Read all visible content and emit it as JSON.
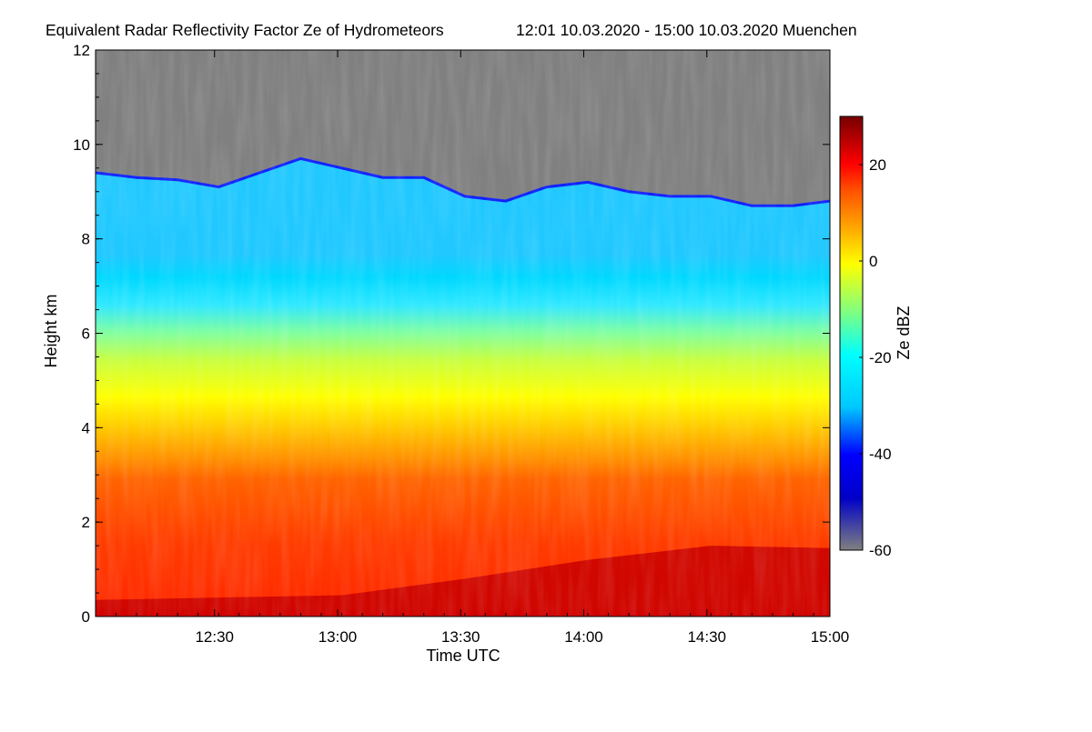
{
  "chart_data": {
    "type": "heatmap",
    "title": "Equivalent Radar Reflectivity Factor Ze of Hydrometeors",
    "subtitle": "12:01 10.03.2020 - 15:00 10.03.2020 Muenchen",
    "xlabel": "Time UTC",
    "ylabel": "Height km",
    "xlim": [
      "12:01",
      "15:00"
    ],
    "ylim": [
      0,
      12
    ],
    "x_ticks": [
      {
        "value": 29,
        "label": "12:30"
      },
      {
        "value": 59,
        "label": "13:00"
      },
      {
        "value": 89,
        "label": "13:30"
      },
      {
        "value": 119,
        "label": "14:00"
      },
      {
        "value": 149,
        "label": "14:30"
      },
      {
        "value": 179,
        "label": "15:00"
      }
    ],
    "y_ticks": [
      {
        "value": 0,
        "label": "0"
      },
      {
        "value": 2,
        "label": "2"
      },
      {
        "value": 4,
        "label": "4"
      },
      {
        "value": 6,
        "label": "6"
      },
      {
        "value": 8,
        "label": "8"
      },
      {
        "value": 10,
        "label": "10"
      },
      {
        "value": 12,
        "label": "12"
      }
    ],
    "colorbar": {
      "label": "Ze dBZ",
      "range": [
        -60,
        30
      ],
      "ticks": [
        {
          "value": 20,
          "label": "20"
        },
        {
          "value": 0,
          "label": "0"
        },
        {
          "value": -20,
          "label": "-20"
        },
        {
          "value": -40,
          "label": "-40"
        },
        {
          "value": -60,
          "label": "-60"
        }
      ],
      "colors": [
        "#808080",
        "#0000c8",
        "#0000ff",
        "#00c8ff",
        "#00ffff",
        "#80ff80",
        "#ffff00",
        "#ffa000",
        "#ff5000",
        "#ff0000",
        "#b40000",
        "#780000"
      ]
    },
    "no_data_color": "#808080",
    "echo_top_km": [
      {
        "t": 0,
        "h": 9.4
      },
      {
        "t": 10,
        "h": 9.3
      },
      {
        "t": 20,
        "h": 9.25
      },
      {
        "t": 30,
        "h": 9.1
      },
      {
        "t": 40,
        "h": 9.4
      },
      {
        "t": 50,
        "h": 9.7
      },
      {
        "t": 60,
        "h": 9.5
      },
      {
        "t": 70,
        "h": 9.3
      },
      {
        "t": 80,
        "h": 9.3
      },
      {
        "t": 90,
        "h": 8.9
      },
      {
        "t": 100,
        "h": 8.8
      },
      {
        "t": 110,
        "h": 9.1
      },
      {
        "t": 120,
        "h": 9.2
      },
      {
        "t": 130,
        "h": 9.0
      },
      {
        "t": 140,
        "h": 8.9
      },
      {
        "t": 150,
        "h": 8.9
      },
      {
        "t": 160,
        "h": 8.7
      },
      {
        "t": 170,
        "h": 8.7
      },
      {
        "t": 179,
        "h": 8.8
      }
    ],
    "reflectivity_profile_dbz": [
      {
        "h": 0.1,
        "ze": 28
      },
      {
        "h": 0.5,
        "ze": 22
      },
      {
        "h": 1.5,
        "ze": 18
      },
      {
        "h": 3.0,
        "ze": 15
      },
      {
        "h": 4.0,
        "ze": 12
      },
      {
        "h": 4.8,
        "ze": 5
      },
      {
        "h": 5.5,
        "ze": 0
      },
      {
        "h": 6.5,
        "ze": -8
      },
      {
        "h": 7.5,
        "ze": -18
      },
      {
        "h": 8.5,
        "ze": -25
      },
      {
        "h": 9.3,
        "ze": -35
      }
    ],
    "melting_layer_km": [
      {
        "t": 0,
        "h": 0.35
      },
      {
        "t": 60,
        "h": 0.45
      },
      {
        "t": 90,
        "h": 0.8
      },
      {
        "t": 120,
        "h": 1.2
      },
      {
        "t": 150,
        "h": 1.5
      },
      {
        "t": 179,
        "h": 1.45
      }
    ]
  }
}
